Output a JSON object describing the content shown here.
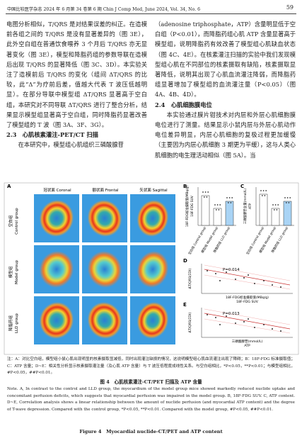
{
  "header": {
    "journal": "中国比较医学杂志 2024 年 6 月第 34 卷第 6 期  Chin J Comp Med, June 2024, Vol. 34, No. 6",
    "page": "59"
  },
  "body": {
    "left": [
      "电图分析相似，T/QRS 是对结果误差的纠正。在造模前各组之间的 T/QRS 是没有显著差异的（图 3E），此外空白组在普通饮食喂养 3 个月后 T/QRS 亦无显著变化（图 3E），模型和降脂药组的参数导联在造模后出现 T/QRS 的显著降低（图 3C、3D）。本实验关注了造模前后 T/QRS 的变化（组间 ΔT/QRS 的比较，此“Δ”为疗前后差，值越大代表 T 波压低越明显）。在部分导联中模型组 ΔT/QRS 显著高于空白组，本研究对不同导联 ΔT/QRS 进行了整合分析，结果显示模型组显著高于空白组，同时降脂药显著改善了模型组的 T 波（图 3A、3F、3G）。",
      "2.3　心肌核素灌注-PET/CT 扫描",
      "在本研究中，模型组心肌组织三磷酸腺苷"
    ],
    "right": [
      "（adenosine triphosphate，ATP）含量明显低于空白组（P<0.01），而降脂药组心肌 ATP 含量显著高于模型组，说明降脂药有效改善了模型组心肌缺血状态（图 4C、4E）。在核素灌注扫描的实验中我们发现模型组心肌在不同部位的核素摄取有缺陷，核素摄取显著降低，说明其出现了心肌血流灌注降弱，而降脂药组显著增加了模型组的血流灌注量（P<0.05）（图 4A、4B、4D）。",
      "2.4　心肌细胞膜电位",
      "本实验通过膜片钳技术对内层和外层心肌细胞膜电位进行了测量。结果显示小鼠内层与外层心肌动作电位差异明显，内层心肌细胞的复极过程更加缓慢（主要因为内层心肌细胞 3 期更为平缓），这与人类心肌细胞的电生理活动相似（图 5A）。当"
    ]
  },
  "figure": {
    "panels": [
      "A",
      "B",
      "C",
      "D",
      "E"
    ],
    "columns": [
      "冠状面 Coronal",
      "额状面 Frontal",
      "矢状面 Sagittal"
    ],
    "rows": [
      [
        "空白组",
        "Control group"
      ],
      [
        "模型组",
        "Model group"
      ],
      [
        "降脂药组",
        "LLD group"
      ]
    ],
    "groups": [
      "空白组 Control group",
      "模型组 Model group",
      "降脂药组 LLD group"
    ],
    "b_ylabel": [
      "18F-FDG标准摄取值(MBq/g)",
      "18F-FDG SUV"
    ],
    "c_ylabel": [
      "三磷酸腺苷含量(mmol/L)",
      "ATP"
    ],
    "d": {
      "ylabel": "ΔT/QRS(ΣDI)",
      "xlabel": [
        "18F-FDG标准摄取值(MBq/g)",
        "18F-FDG SUV"
      ],
      "p": "P=0.014"
    },
    "e": {
      "ylabel": "ΔT/QRS(ΣDI)",
      "xlabel": [
        "三磷酸腺苷(mmol/L)",
        "ATP"
      ],
      "p": "P=0.013"
    }
  },
  "caption": {
    "note_cn": "注：A：对比空白组，模型组小鼠心肌出现明显的核素摄取显减低，同时出现灌注缺损的情况，这说明模型组心肌血流灌注出现了障碍；B：18F-FDG 标准摄取值；C：ATP 含量；D~E：相关性分析显示核素摄取灌注量（及心肌 ATP 含量）与 T 波压低程度成线性关系。与空白组相比，*P<0.05，**P<0.01；与模型组相比，#P<0.05，##P<0.01。",
    "title_cn": "图 4　心肌核素灌注-CT/PET 扫描及 ATP 含量",
    "note_en": "Note. A, In contrast to the control and LLD group, the myocardium of the model group mice showed markedly reduced nuclide uptake and concomitant perfusion deficits, which suggests that myocardial perfusion was impaired in the model group. B, 18F-FDG SUV. C, ATP content. D~E, Correlation analysis shows a linear relationship between the amount of nuclide perfusion (and myocardial ATP content) and the degree of T-wave depression. Compared with the control group, *P<0.05, **P<0.01. Compared with the model group, #P<0.05, ##P<0.01.",
    "title_en": "Figure 4　Myocardial nuclide-CT/PET and ATP content"
  }
}
